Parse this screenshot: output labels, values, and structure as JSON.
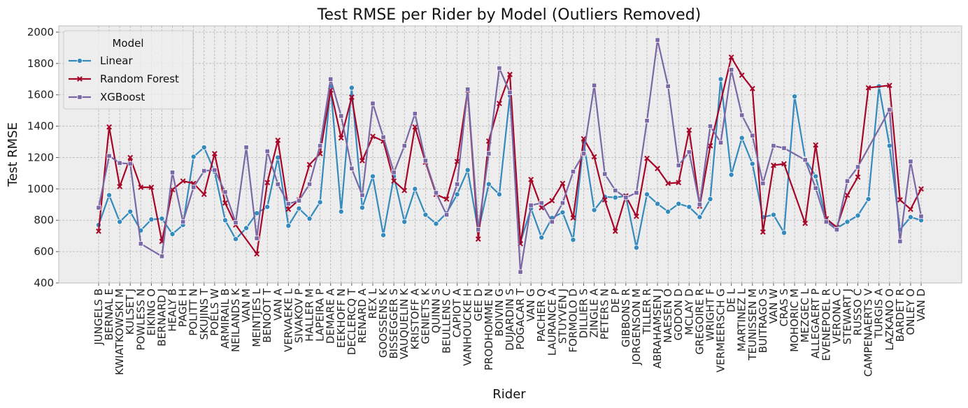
{
  "chart_data": {
    "type": "line",
    "title": "Test RMSE per Rider by Model (Outliers Removed)",
    "xlabel": "Rider",
    "ylabel": "Test RMSE",
    "ylim": [
      400,
      2040
    ],
    "yticks": [
      400,
      600,
      800,
      1000,
      1200,
      1400,
      1600,
      1800,
      2000
    ],
    "grid": true,
    "legend": {
      "title": "Model",
      "position": "top-left"
    },
    "categories": [
      "JUNGELS B",
      "BERNAL E",
      "KWIATKOWSKI M",
      "KULSET J",
      "POWLESS N",
      "EIKING O",
      "BERNARD J",
      "HEALY B",
      "PAGE H",
      "POLITT N",
      "SKUJINS T",
      "POELS W",
      "ARMIRAIL B",
      "NEILANDS K",
      "VAN M",
      "MEINTJES L",
      "BENOOT T",
      "VAN A",
      "VERVAEKE L",
      "SIVAKOV P",
      "HALLER M",
      "LAPEIRA P",
      "DEMARE A",
      "EEKHOFF N",
      "DECLERCQ T",
      "RENARD A",
      "REX L",
      "GOOSSENS K",
      "BISSEGGER S",
      "VAUQUELIN K",
      "KRISTOFF A",
      "GENIETS K",
      "QUINN S",
      "BEULLENS C",
      "CAPIOT A",
      "VANHOUCKE H",
      "GEE D",
      "PRODHOMME N",
      "BOIVIN G",
      "DUJARDIN S",
      "POGACAR T",
      "VAN G",
      "PACHER Q",
      "LAURANCE A",
      "STUYVEN J",
      "FORMOLO D",
      "DILLIER S",
      "ZINGLE A",
      "PETERS N",
      "DE P",
      "GIBBONS R",
      "JORGENSON M",
      "TILLER R",
      "ABRAHAMSEN J",
      "NAESEN O",
      "GODON D",
      "MCLAY D",
      "GREGOIRE R",
      "WRIGHT F",
      "VERMEERSCH G",
      "DE L",
      "MARTINEZ L",
      "TEUNISSEN M",
      "BUITRAGO S",
      "VAN W",
      "CRAS S",
      "MOHORIC M",
      "MEZGEC L",
      "ALLEGAERT P",
      "EVENEPOEL R",
      "VERONA C",
      "STEWART J",
      "RUSSO C",
      "CAMPENAERTS V",
      "TURGIS A",
      "LAZKANO O",
      "BARDET R",
      "ONLEY O",
      "VAN D"
    ],
    "series": [
      {
        "name": "Linear",
        "color": "#348ABD",
        "marker": "circle",
        "values": [
          770,
          960,
          790,
          855,
          735,
          805,
          810,
          712,
          770,
          1205,
          1265,
          1110,
          800,
          680,
          750,
          845,
          885,
          1200,
          765,
          875,
          810,
          915,
          1655,
          855,
          1645,
          880,
          1080,
          705,
          1080,
          790,
          1000,
          835,
          778,
          845,
          965,
          1120,
          730,
          1030,
          965,
          1595,
          660,
          875,
          690,
          815,
          850,
          675,
          1300,
          865,
          950,
          945,
          955,
          625,
          965,
          905,
          855,
          905,
          885,
          820,
          935,
          1700,
          1090,
          1325,
          1160,
          820,
          835,
          720,
          1590,
          1190,
          1080,
          805,
          750,
          790,
          830,
          935,
          1655,
          1275,
          740,
          820,
          800
        ]
      },
      {
        "name": "Random Forest",
        "color": "#A60628",
        "marker": "x",
        "values": [
          730,
          1395,
          1015,
          1200,
          1010,
          1010,
          665,
          995,
          1050,
          1035,
          965,
          1225,
          910,
          770,
          null,
          585,
          1040,
          1310,
          870,
          930,
          1155,
          1225,
          1630,
          1325,
          1585,
          1180,
          1335,
          1305,
          1050,
          990,
          1395,
          1170,
          965,
          935,
          1175,
          1630,
          680,
          1305,
          1545,
          1730,
          650,
          1060,
          880,
          925,
          1035,
          815,
          1320,
          1205,
          930,
          730,
          955,
          825,
          1195,
          1130,
          1035,
          1040,
          1375,
          890,
          1275,
          null,
          1840,
          1725,
          1640,
          725,
          1150,
          1160,
          null,
          780,
          1280,
          810,
          755,
          960,
          1075,
          1645,
          null,
          1660,
          930,
          870,
          1000
        ]
      },
      {
        "name": "XGBoost",
        "color": "#7A68A6",
        "marker": "square",
        "values": [
          880,
          1210,
          1165,
          1160,
          650,
          null,
          570,
          1105,
          790,
          1010,
          1115,
          1120,
          980,
          785,
          1265,
          685,
          1240,
          1030,
          905,
          925,
          1030,
          1275,
          1700,
          1465,
          1130,
          960,
          1545,
          1330,
          1105,
          1275,
          1480,
          1180,
          975,
          835,
          1030,
          1635,
          740,
          1225,
          1770,
          1615,
          470,
          895,
          910,
          790,
          910,
          1110,
          1225,
          1660,
          1095,
          990,
          945,
          975,
          1435,
          1950,
          1655,
          1150,
          1235,
          900,
          1400,
          1295,
          1760,
          1470,
          1340,
          1035,
          1275,
          1260,
          null,
          1185,
          1005,
          790,
          740,
          1050,
          1140,
          null,
          null,
          1505,
          665,
          1175,
          825
        ]
      }
    ]
  }
}
